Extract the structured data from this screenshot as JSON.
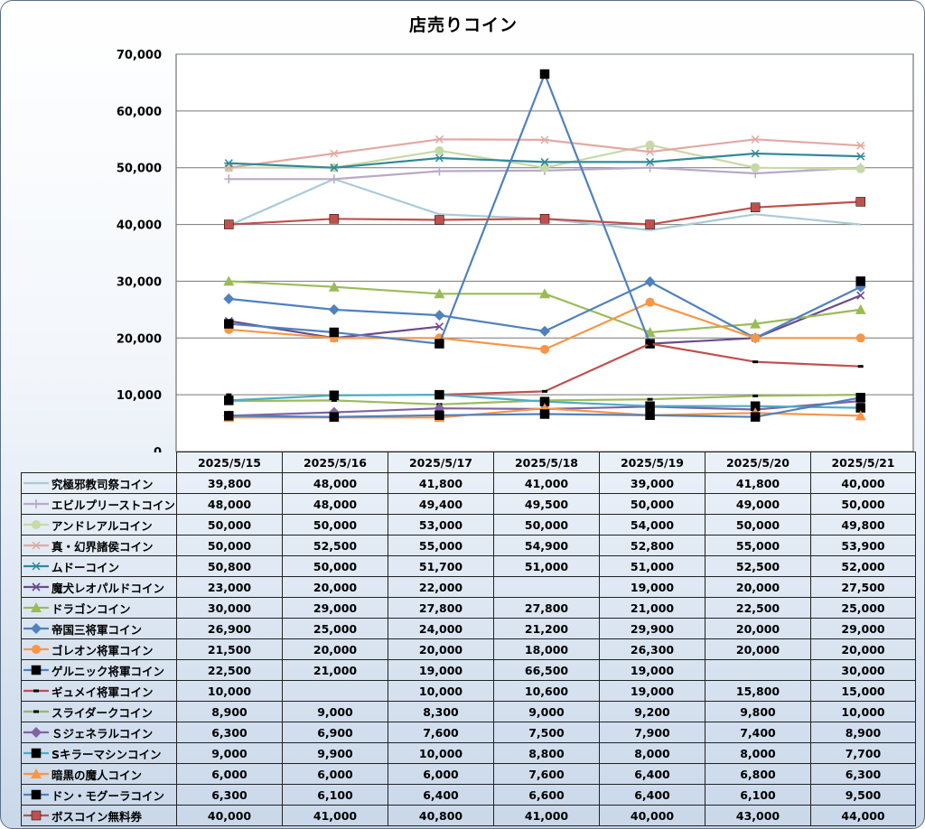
{
  "chart_data": {
    "type": "line",
    "title": "店売りコイン",
    "xlabel": "",
    "ylabel": "",
    "ylim": [
      0,
      70000
    ],
    "yticks": [
      0,
      10000,
      20000,
      30000,
      40000,
      50000,
      60000,
      70000
    ],
    "ytick_labels": [
      "0",
      "10,000",
      "20,000",
      "30,000",
      "40,000",
      "50,000",
      "60,000",
      "70,000"
    ],
    "grid": "horizontal",
    "legend": "data-table",
    "categories": [
      "2025/5/15",
      "2025/5/16",
      "2025/5/17",
      "2025/5/18",
      "2025/5/19",
      "2025/5/20",
      "2025/5/21"
    ],
    "series": [
      {
        "name": "究極邪教司祭コイン",
        "color": "#a9cbd8",
        "marker": "none",
        "values": [
          39800,
          48000,
          41800,
          41000,
          39000,
          41800,
          40000
        ]
      },
      {
        "name": "エビルプリーストコイン",
        "color": "#b9a9c9",
        "marker": "plus",
        "values": [
          48000,
          48000,
          49400,
          49500,
          50000,
          49000,
          50000
        ]
      },
      {
        "name": "アンドレアルコイン",
        "color": "#c8d9a8",
        "marker": "circle",
        "values": [
          50000,
          50000,
          53000,
          50000,
          54000,
          50000,
          49800
        ]
      },
      {
        "name": "真・幻界諸侯コイン",
        "color": "#e2a9a3",
        "marker": "star",
        "values": [
          50000,
          52500,
          55000,
          54900,
          52800,
          55000,
          53900
        ]
      },
      {
        "name": "ムドーコイン",
        "color": "#2f8a99",
        "marker": "star",
        "values": [
          50800,
          50000,
          51700,
          51000,
          51000,
          52500,
          52000
        ]
      },
      {
        "name": "魔犬レオパルドコイン",
        "color": "#6b4a8b",
        "marker": "x",
        "values": [
          23000,
          20000,
          22000,
          null,
          19000,
          20000,
          27500
        ]
      },
      {
        "name": "ドラゴンコイン",
        "color": "#9bbb59",
        "marker": "triangle",
        "values": [
          30000,
          29000,
          27800,
          27800,
          21000,
          22500,
          25000
        ]
      },
      {
        "name": "帝国三将軍コイン",
        "color": "#4f81bd",
        "marker": "diamond",
        "values": [
          26900,
          25000,
          24000,
          21200,
          29900,
          20000,
          29000
        ]
      },
      {
        "name": "ゴレオン将軍コイン",
        "color": "#f79646",
        "marker": "circle",
        "values": [
          21500,
          20000,
          20000,
          18000,
          26300,
          20000,
          20000
        ]
      },
      {
        "name": "ゲルニック将軍コイン",
        "color": "#4f81bd",
        "marker": "square",
        "values": [
          22500,
          21000,
          19000,
          66500,
          19000,
          null,
          30000
        ]
      },
      {
        "name": "ギュメイ将軍コイン",
        "color": "#c0504d",
        "marker": "dash",
        "values": [
          10000,
          null,
          10000,
          10600,
          19000,
          15800,
          15000
        ]
      },
      {
        "name": "スライダークコイン",
        "color": "#9bbb59",
        "marker": "dash",
        "values": [
          8900,
          9000,
          8300,
          9000,
          9200,
          9800,
          10000
        ]
      },
      {
        "name": "Ｓジェネラルコイン",
        "color": "#8064a2",
        "marker": "diamond",
        "values": [
          6300,
          6900,
          7600,
          7500,
          7900,
          7400,
          8900
        ]
      },
      {
        "name": "Sキラーマシンコイン",
        "color": "#4bacc6",
        "marker": "square",
        "values": [
          9000,
          9900,
          10000,
          8800,
          8000,
          8000,
          7700
        ]
      },
      {
        "name": "暗黒の魔人コイン",
        "color": "#f79646",
        "marker": "triangle",
        "values": [
          6000,
          6000,
          6000,
          7600,
          6400,
          6800,
          6300
        ]
      },
      {
        "name": "ドン・モグーラコイン",
        "color": "#4f81bd",
        "marker": "square",
        "values": [
          6300,
          6100,
          6400,
          6600,
          6400,
          6100,
          9500
        ]
      },
      {
        "name": "ボスコイン無料券",
        "color": "#c0504d",
        "marker": "square",
        "values": [
          40000,
          41000,
          40800,
          41000,
          40000,
          43000,
          44000
        ]
      }
    ],
    "table_values": [
      [
        "39,800",
        "48,000",
        "41,800",
        "41,000",
        "39,000",
        "41,800",
        "40,000"
      ],
      [
        "48,000",
        "48,000",
        "49,400",
        "49,500",
        "50,000",
        "49,000",
        "50,000"
      ],
      [
        "50,000",
        "50,000",
        "53,000",
        "50,000",
        "54,000",
        "50,000",
        "49,800"
      ],
      [
        "50,000",
        "52,500",
        "55,000",
        "54,900",
        "52,800",
        "55,000",
        "53,900"
      ],
      [
        "50,800",
        "50,000",
        "51,700",
        "51,000",
        "51,000",
        "52,500",
        "52,000"
      ],
      [
        "23,000",
        "20,000",
        "22,000",
        "",
        "19,000",
        "20,000",
        "27,500"
      ],
      [
        "30,000",
        "29,000",
        "27,800",
        "27,800",
        "21,000",
        "22,500",
        "25,000"
      ],
      [
        "26,900",
        "25,000",
        "24,000",
        "21,200",
        "29,900",
        "20,000",
        "29,000"
      ],
      [
        "21,500",
        "20,000",
        "20,000",
        "18,000",
        "26,300",
        "20,000",
        "20,000"
      ],
      [
        "22,500",
        "21,000",
        "19,000",
        "66,500",
        "19,000",
        "",
        "30,000"
      ],
      [
        "10,000",
        "",
        "10,000",
        "10,600",
        "19,000",
        "15,800",
        "15,000"
      ],
      [
        "8,900",
        "9,000",
        "8,300",
        "9,000",
        "9,200",
        "9,800",
        "10,000"
      ],
      [
        "6,300",
        "6,900",
        "7,600",
        "7,500",
        "7,900",
        "7,400",
        "8,900"
      ],
      [
        "9,000",
        "9,900",
        "10,000",
        "8,800",
        "8,000",
        "8,000",
        "7,700"
      ],
      [
        "6,000",
        "6,000",
        "6,000",
        "7,600",
        "6,400",
        "6,800",
        "6,300"
      ],
      [
        "6,300",
        "6,100",
        "6,400",
        "6,600",
        "6,400",
        "6,100",
        "9,500"
      ],
      [
        "40,000",
        "41,000",
        "40,800",
        "41,000",
        "40,000",
        "43,000",
        "44,000"
      ]
    ]
  }
}
